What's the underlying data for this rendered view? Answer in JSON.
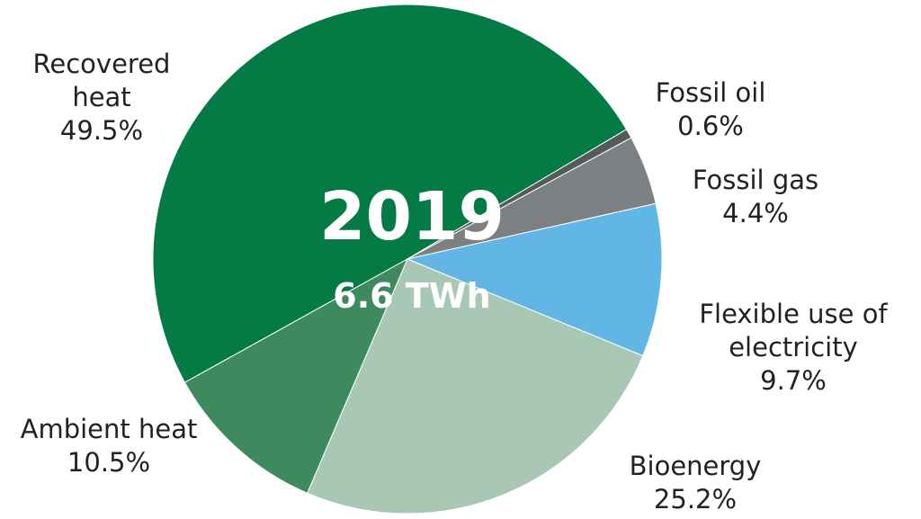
{
  "chart_data": {
    "type": "pie",
    "title": "2019",
    "subtitle": "6.6 TWh",
    "categories": [
      "Recovered heat",
      "Fossil oil",
      "Fossil gas",
      "Flexible use of electricity",
      "Bioenergy",
      "Ambient heat"
    ],
    "values": [
      49.5,
      0.6,
      4.4,
      9.7,
      25.2,
      10.5
    ],
    "value_labels": [
      "49.5%",
      "0.6%",
      "4.4%",
      "9.7%",
      "25.2%",
      "10.5%"
    ],
    "colors": [
      "#047a45",
      "#555a5a",
      "#7d8083",
      "#62b6e6",
      "#a9c7b5",
      "#3e8a5e"
    ]
  }
}
